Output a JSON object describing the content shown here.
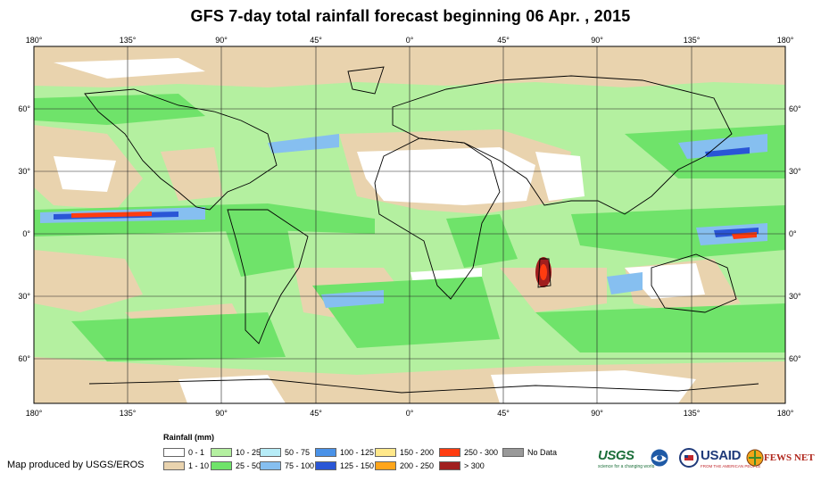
{
  "title": "GFS 7-day total rainfall forecast beginning 06 Apr. , 2015",
  "lon_ticks": [
    "180°",
    "135°",
    "90°",
    "45°",
    "0°",
    "45°",
    "90°",
    "135°",
    "180°"
  ],
  "lat_ticks": [
    "60°",
    "30°",
    "0°",
    "30°",
    "60°"
  ],
  "legend": {
    "title": "Rainfall (mm)",
    "items": [
      {
        "label": "0 - 1",
        "color": "#ffffff"
      },
      {
        "label": "1 - 10",
        "color": "#e9d3ae"
      },
      {
        "label": "10 - 25",
        "color": "#b4f0a0"
      },
      {
        "label": "25 - 50",
        "color": "#6fe36a"
      },
      {
        "label": "50 - 75",
        "color": "#b6ecf7"
      },
      {
        "label": "75 - 100",
        "color": "#86bff0"
      },
      {
        "label": "100 - 125",
        "color": "#4a92e8"
      },
      {
        "label": "125 - 150",
        "color": "#2a56d6"
      },
      {
        "label": "150 - 200",
        "color": "#ffe88a"
      },
      {
        "label": "200 - 250",
        "color": "#ffa51a"
      },
      {
        "label": "250 - 300",
        "color": "#ff3c10"
      },
      {
        "label": "> 300",
        "color": "#a01e1e"
      },
      {
        "label": "No Data",
        "color": "#999999"
      }
    ]
  },
  "credit": "Map produced by USGS/EROS",
  "logos": {
    "usgs": "USGS",
    "usgs_tagline": "science for a changing world",
    "usaid": "USAID",
    "usaid_tagline": "FROM THE AMERICAN PEOPLE",
    "fews": "FEWS NET"
  }
}
